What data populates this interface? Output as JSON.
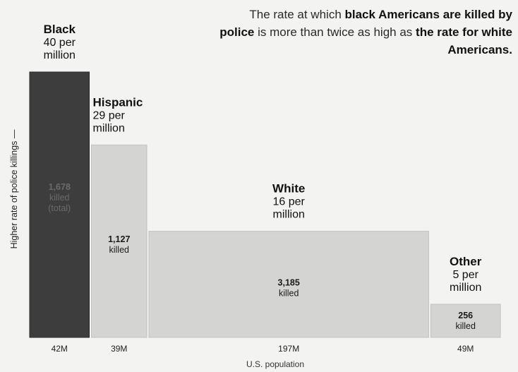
{
  "chart_data": {
    "type": "bar",
    "title_parts": [
      {
        "text": "The rate at which ",
        "bold": false
      },
      {
        "text": "black Americans are killed by police",
        "bold": true
      },
      {
        "text": " is more than twice as high as ",
        "bold": false
      },
      {
        "text": "the rate for white Americans.",
        "bold": true
      }
    ],
    "ylabel": "Higher rate of police killings —",
    "xlabel": "U.S. population",
    "ylim": [
      0,
      40
    ],
    "series": [
      {
        "name": "Black",
        "rate_line": "40 per",
        "unit_line": "million",
        "rate": 40,
        "population": 42,
        "population_label": "42M",
        "killed_lines": [
          "1,678",
          "killed",
          "(total)"
        ],
        "color": "#3d3d3d"
      },
      {
        "name": "Hispanic",
        "rate_line": "29 per",
        "unit_line": "million",
        "rate": 29,
        "population": 39,
        "population_label": "39M",
        "killed_lines": [
          "1,127",
          "killed"
        ],
        "color": "#d4d4d2"
      },
      {
        "name": "White",
        "rate_line": "16 per",
        "unit_line": "million",
        "rate": 16,
        "population": 197,
        "population_label": "197M",
        "killed_lines": [
          "3,185",
          "killed"
        ],
        "color": "#d4d4d2"
      },
      {
        "name": "Other",
        "rate_line": "5 per",
        "unit_line": "million",
        "rate": 5,
        "population": 49,
        "population_label": "49M",
        "killed_lines": [
          "256",
          "killed"
        ],
        "color": "#d4d4d2"
      }
    ]
  }
}
